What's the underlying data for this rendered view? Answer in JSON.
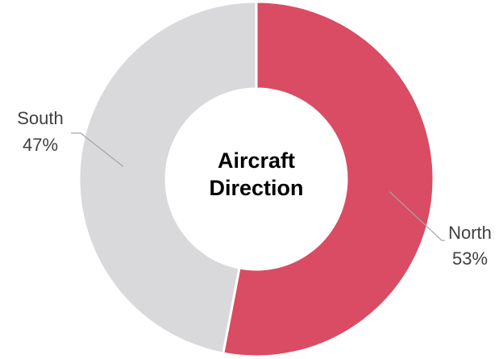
{
  "chart_data": {
    "type": "pie",
    "title": "Aircraft Direction",
    "categories": [
      "North",
      "South"
    ],
    "values": [
      53,
      47
    ],
    "value_labels": [
      "53%",
      "47%"
    ],
    "colors": [
      "#d94c63",
      "#d9d9db"
    ]
  }
}
